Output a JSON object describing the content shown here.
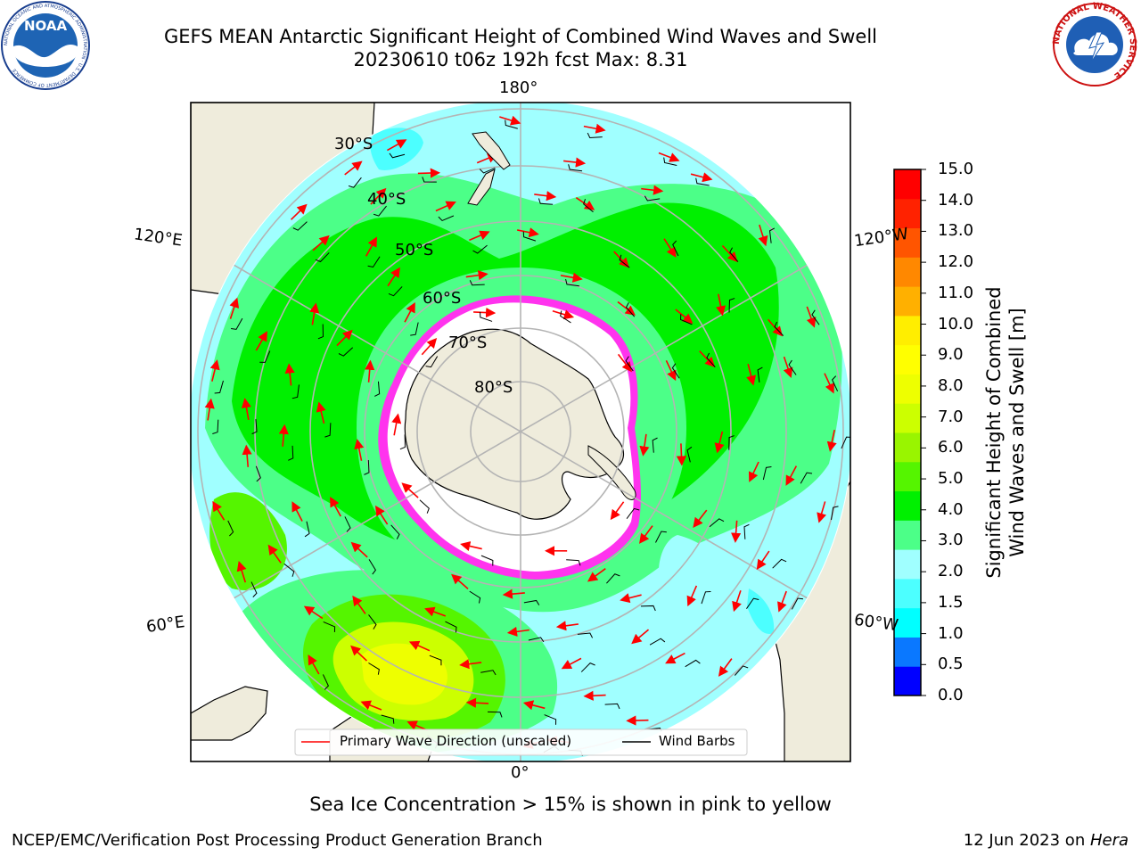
{
  "header": {
    "title_line1": "GEFS MEAN Antarctic Significant Height of Combined Wind Waves and Swell",
    "title_line2": "20230610 t06z 192h fcst   Max: 8.31"
  },
  "logos": {
    "noaa_text": "NOAA",
    "noaa_ring": "NATIONAL OCEANIC AND ATMOSPHERIC ADMINISTRATION · U.S. DEPARTMENT OF COMMERCE",
    "nws_ring": "NATIONAL WEATHER SERVICE"
  },
  "map": {
    "longitude_labels": {
      "top": "180°",
      "bottom": "0°",
      "upper_left": "120°E",
      "upper_right": "120°W",
      "lower_left": "60°E",
      "lower_right": "60°W"
    },
    "latitude_labels": [
      "30°S",
      "40°S",
      "50°S",
      "60°S",
      "70°S",
      "80°S"
    ],
    "legend": {
      "primary_wave": "Primary Wave Direction (unscaled)",
      "wind_barbs": "Wind Barbs"
    }
  },
  "colorbar": {
    "title_line1": "Significant Height of Combined",
    "title_line2": "Wind Waves and Swell [m]",
    "ticks": [
      "0.0",
      "0.5",
      "1.0",
      "1.5",
      "2.0",
      "3.0",
      "4.0",
      "5.0",
      "6.0",
      "7.0",
      "8.0",
      "9.0",
      "10.0",
      "11.0",
      "12.0",
      "13.0",
      "14.0",
      "15.0"
    ],
    "colors": [
      "#0000ff",
      "#0a78ff",
      "#00ffff",
      "#4cffff",
      "#a0ffff",
      "#4cff88",
      "#00f000",
      "#55f500",
      "#99f500",
      "#ccff00",
      "#eeff00",
      "#ffff00",
      "#ffee00",
      "#ffb000",
      "#ff8800",
      "#ff5500",
      "#ff2200",
      "#ff0000"
    ]
  },
  "sea_ice_note": "Sea Ice Concentration > 15% is shown in pink to yellow",
  "footer": {
    "left": "NCEP/EMC/Verification Post Processing Product Generation Branch",
    "date": "12 Jun 2023 on ",
    "machine": "Hera"
  },
  "colors": {
    "land": "#efecdc",
    "ice": "#ffffff",
    "ice_edge": "#ff33ee",
    "grid": "#b4b4b4",
    "arrow": "#ff0000"
  }
}
